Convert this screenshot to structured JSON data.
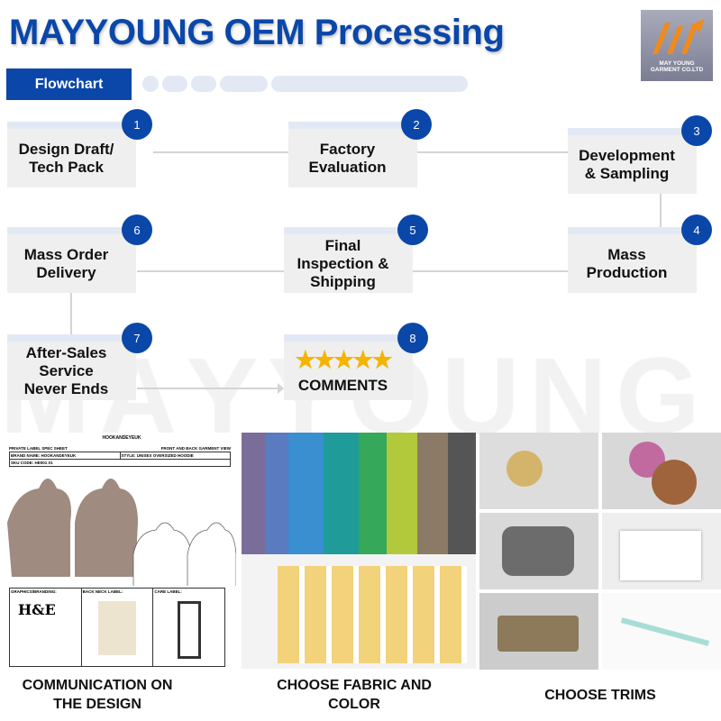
{
  "header": {
    "title": "MAYYOUNG OEM  Processing",
    "logo_text_1": "MAY YOUNG",
    "logo_text_2": "GARMENT CO.LTD",
    "tab_label": "Flowchart"
  },
  "watermark": "MAYYOUNG",
  "steps": [
    {
      "num": "1",
      "label": "Design Draft/ Tech Pack"
    },
    {
      "num": "2",
      "label": "Factory Evaluation"
    },
    {
      "num": "3",
      "label": "Development & Sampling"
    },
    {
      "num": "4",
      "label": "Mass Production"
    },
    {
      "num": "5",
      "label": "Final Inspection & Shipping"
    },
    {
      "num": "6",
      "label": "Mass Order Delivery"
    },
    {
      "num": "7",
      "label": "After-Sales Service Never Ends"
    },
    {
      "num": "8",
      "label": "COMMENTS",
      "stars": "★★★★★"
    }
  ],
  "spec_sheet": {
    "brand": "HOOKANDEYEUK",
    "title": "PRIVATE LABEL SPEC SHEET",
    "view": "FRONT AND BACK GARMENT VIEW",
    "brand_name": "BRAND NAME: HOOKANDEYEUK",
    "style": "STYLE: UNISEX OVERSIZED HOODIE",
    "sku": "SKU CODE: HE001 01",
    "graphics": "GRAPHICS/BRANDING:",
    "back_neck": "BACK NECK LABEL:",
    "care": "CARE LABEL:",
    "logo": "H&E"
  },
  "captions": {
    "design": "COMMUNICATION ON THE DESIGN",
    "fabric": "CHOOSE FABRIC AND COLOR",
    "trims": "CHOOSE TRIMS"
  },
  "colors": {
    "brand_blue": "#0a47a9",
    "star": "#f5b400",
    "logo_orange": "#f08a1c"
  }
}
